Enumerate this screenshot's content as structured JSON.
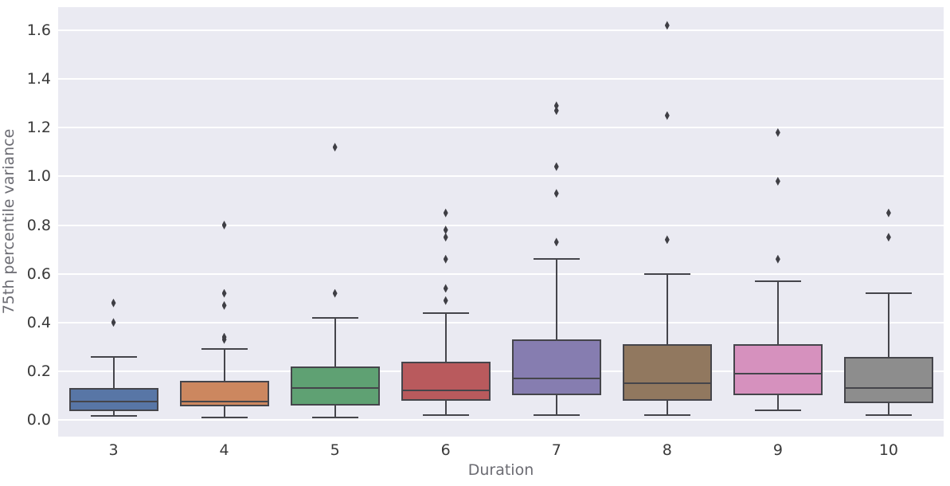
{
  "chart_data": {
    "type": "boxplot",
    "title": "",
    "xlabel": "Duration",
    "ylabel": "75th percentile variance",
    "categories": [
      "3",
      "4",
      "5",
      "6",
      "7",
      "8",
      "9",
      "10"
    ],
    "y_tick_labels": [
      "0.0",
      "0.2",
      "0.4",
      "0.6",
      "0.8",
      "1.0",
      "1.2",
      "1.4",
      "1.6"
    ],
    "y_tick_values": [
      0.0,
      0.2,
      0.4,
      0.6,
      0.8,
      1.0,
      1.2,
      1.4,
      1.6
    ],
    "ylim": [
      -0.07,
      1.7
    ],
    "grid": "horizontal",
    "legend_position": "none",
    "series": [
      {
        "category": "3",
        "color": "#5876A6",
        "whisker_low": 0.015,
        "q1": 0.035,
        "median": 0.075,
        "q3": 0.13,
        "whisker_high": 0.26,
        "outliers": [
          0.4,
          0.48
        ]
      },
      {
        "category": "4",
        "color": "#CC875F",
        "whisker_low": 0.01,
        "q1": 0.055,
        "median": 0.075,
        "q3": 0.16,
        "whisker_high": 0.29,
        "outliers": [
          0.33,
          0.34,
          0.47,
          0.52,
          0.8
        ]
      },
      {
        "category": "5",
        "color": "#5FA173",
        "whisker_low": 0.01,
        "q1": 0.06,
        "median": 0.13,
        "q3": 0.22,
        "whisker_high": 0.42,
        "outliers": [
          0.52,
          1.12
        ]
      },
      {
        "category": "6",
        "color": "#B95A5D",
        "whisker_low": 0.02,
        "q1": 0.08,
        "median": 0.12,
        "q3": 0.24,
        "whisker_high": 0.44,
        "outliers": [
          0.49,
          0.54,
          0.66,
          0.75,
          0.78,
          0.85
        ]
      },
      {
        "category": "7",
        "color": "#867DB0",
        "whisker_low": 0.02,
        "q1": 0.1,
        "median": 0.17,
        "q3": 0.33,
        "whisker_high": 0.66,
        "outliers": [
          0.73,
          0.93,
          1.04,
          1.27,
          1.29
        ]
      },
      {
        "category": "8",
        "color": "#91785F",
        "whisker_low": 0.02,
        "q1": 0.08,
        "median": 0.15,
        "q3": 0.31,
        "whisker_high": 0.6,
        "outliers": [
          0.74,
          1.25,
          1.62
        ]
      },
      {
        "category": "9",
        "color": "#D691BE",
        "whisker_low": 0.04,
        "q1": 0.1,
        "median": 0.19,
        "q3": 0.31,
        "whisker_high": 0.57,
        "outliers": [
          0.66,
          0.98,
          1.18
        ]
      },
      {
        "category": "10",
        "color": "#8D8D8D",
        "whisker_low": 0.02,
        "q1": 0.07,
        "median": 0.13,
        "q3": 0.26,
        "whisker_high": 0.52,
        "outliers": [
          0.75,
          0.85
        ]
      }
    ]
  },
  "style": {
    "figure_bg": "#FFFFFF",
    "plot_bg": "#EAEAF2",
    "grid_color": "#FFFFFF",
    "box_line_color": "#45454B",
    "outlier_color": "#3F3F45",
    "tick_label_color": "#3A3A3A",
    "axis_label_color": "#6B6B72"
  }
}
